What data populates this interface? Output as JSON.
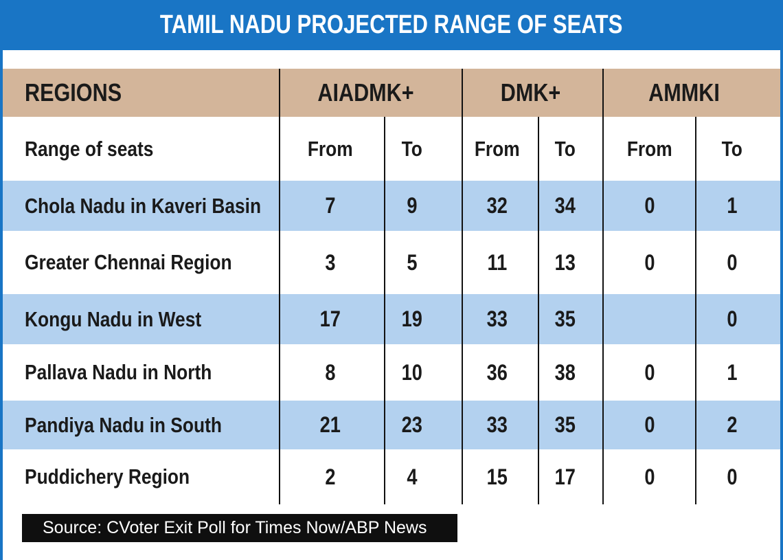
{
  "title": "TAMIL NADU PROJECTED RANGE OF SEATS",
  "source": "Source: CVoter Exit Poll for Times Now/ABP News",
  "colors": {
    "title_bar": "#1975c5",
    "header_band": "#d3b59a",
    "row_stripe": "#b3d1ef",
    "source_box": "#0f0f0f"
  },
  "chart_data": {
    "type": "table",
    "title": "TAMIL NADU PROJECTED RANGE OF SEATS",
    "header": [
      "REGIONS",
      "AIADMK+",
      "DMK+",
      "AMMKI"
    ],
    "subheader": [
      "Range of seats",
      "From",
      "To",
      "From",
      "To",
      "From",
      "To"
    ],
    "rows": [
      {
        "region": "Chola Nadu in Kaveri Basin",
        "values": [
          "7",
          "9",
          "32",
          "34",
          "0",
          "1"
        ]
      },
      {
        "region": "Greater Chennai Region",
        "values": [
          "3",
          "5",
          "11",
          "13",
          "0",
          "0"
        ]
      },
      {
        "region": "Kongu Nadu in West",
        "values": [
          "17",
          "19",
          "33",
          "35",
          "",
          "0"
        ]
      },
      {
        "region": "Pallava Nadu in North",
        "values": [
          "8",
          "10",
          "36",
          "38",
          "0",
          "1"
        ]
      },
      {
        "region": "Pandiya Nadu in South",
        "values": [
          "21",
          "23",
          "33",
          "35",
          "0",
          "2"
        ]
      },
      {
        "region": "Puddichery Region",
        "values": [
          "2",
          "4",
          "15",
          "17",
          "0",
          "0"
        ]
      }
    ],
    "source": "Source: CVoter Exit Poll for Times Now/ABP News"
  }
}
